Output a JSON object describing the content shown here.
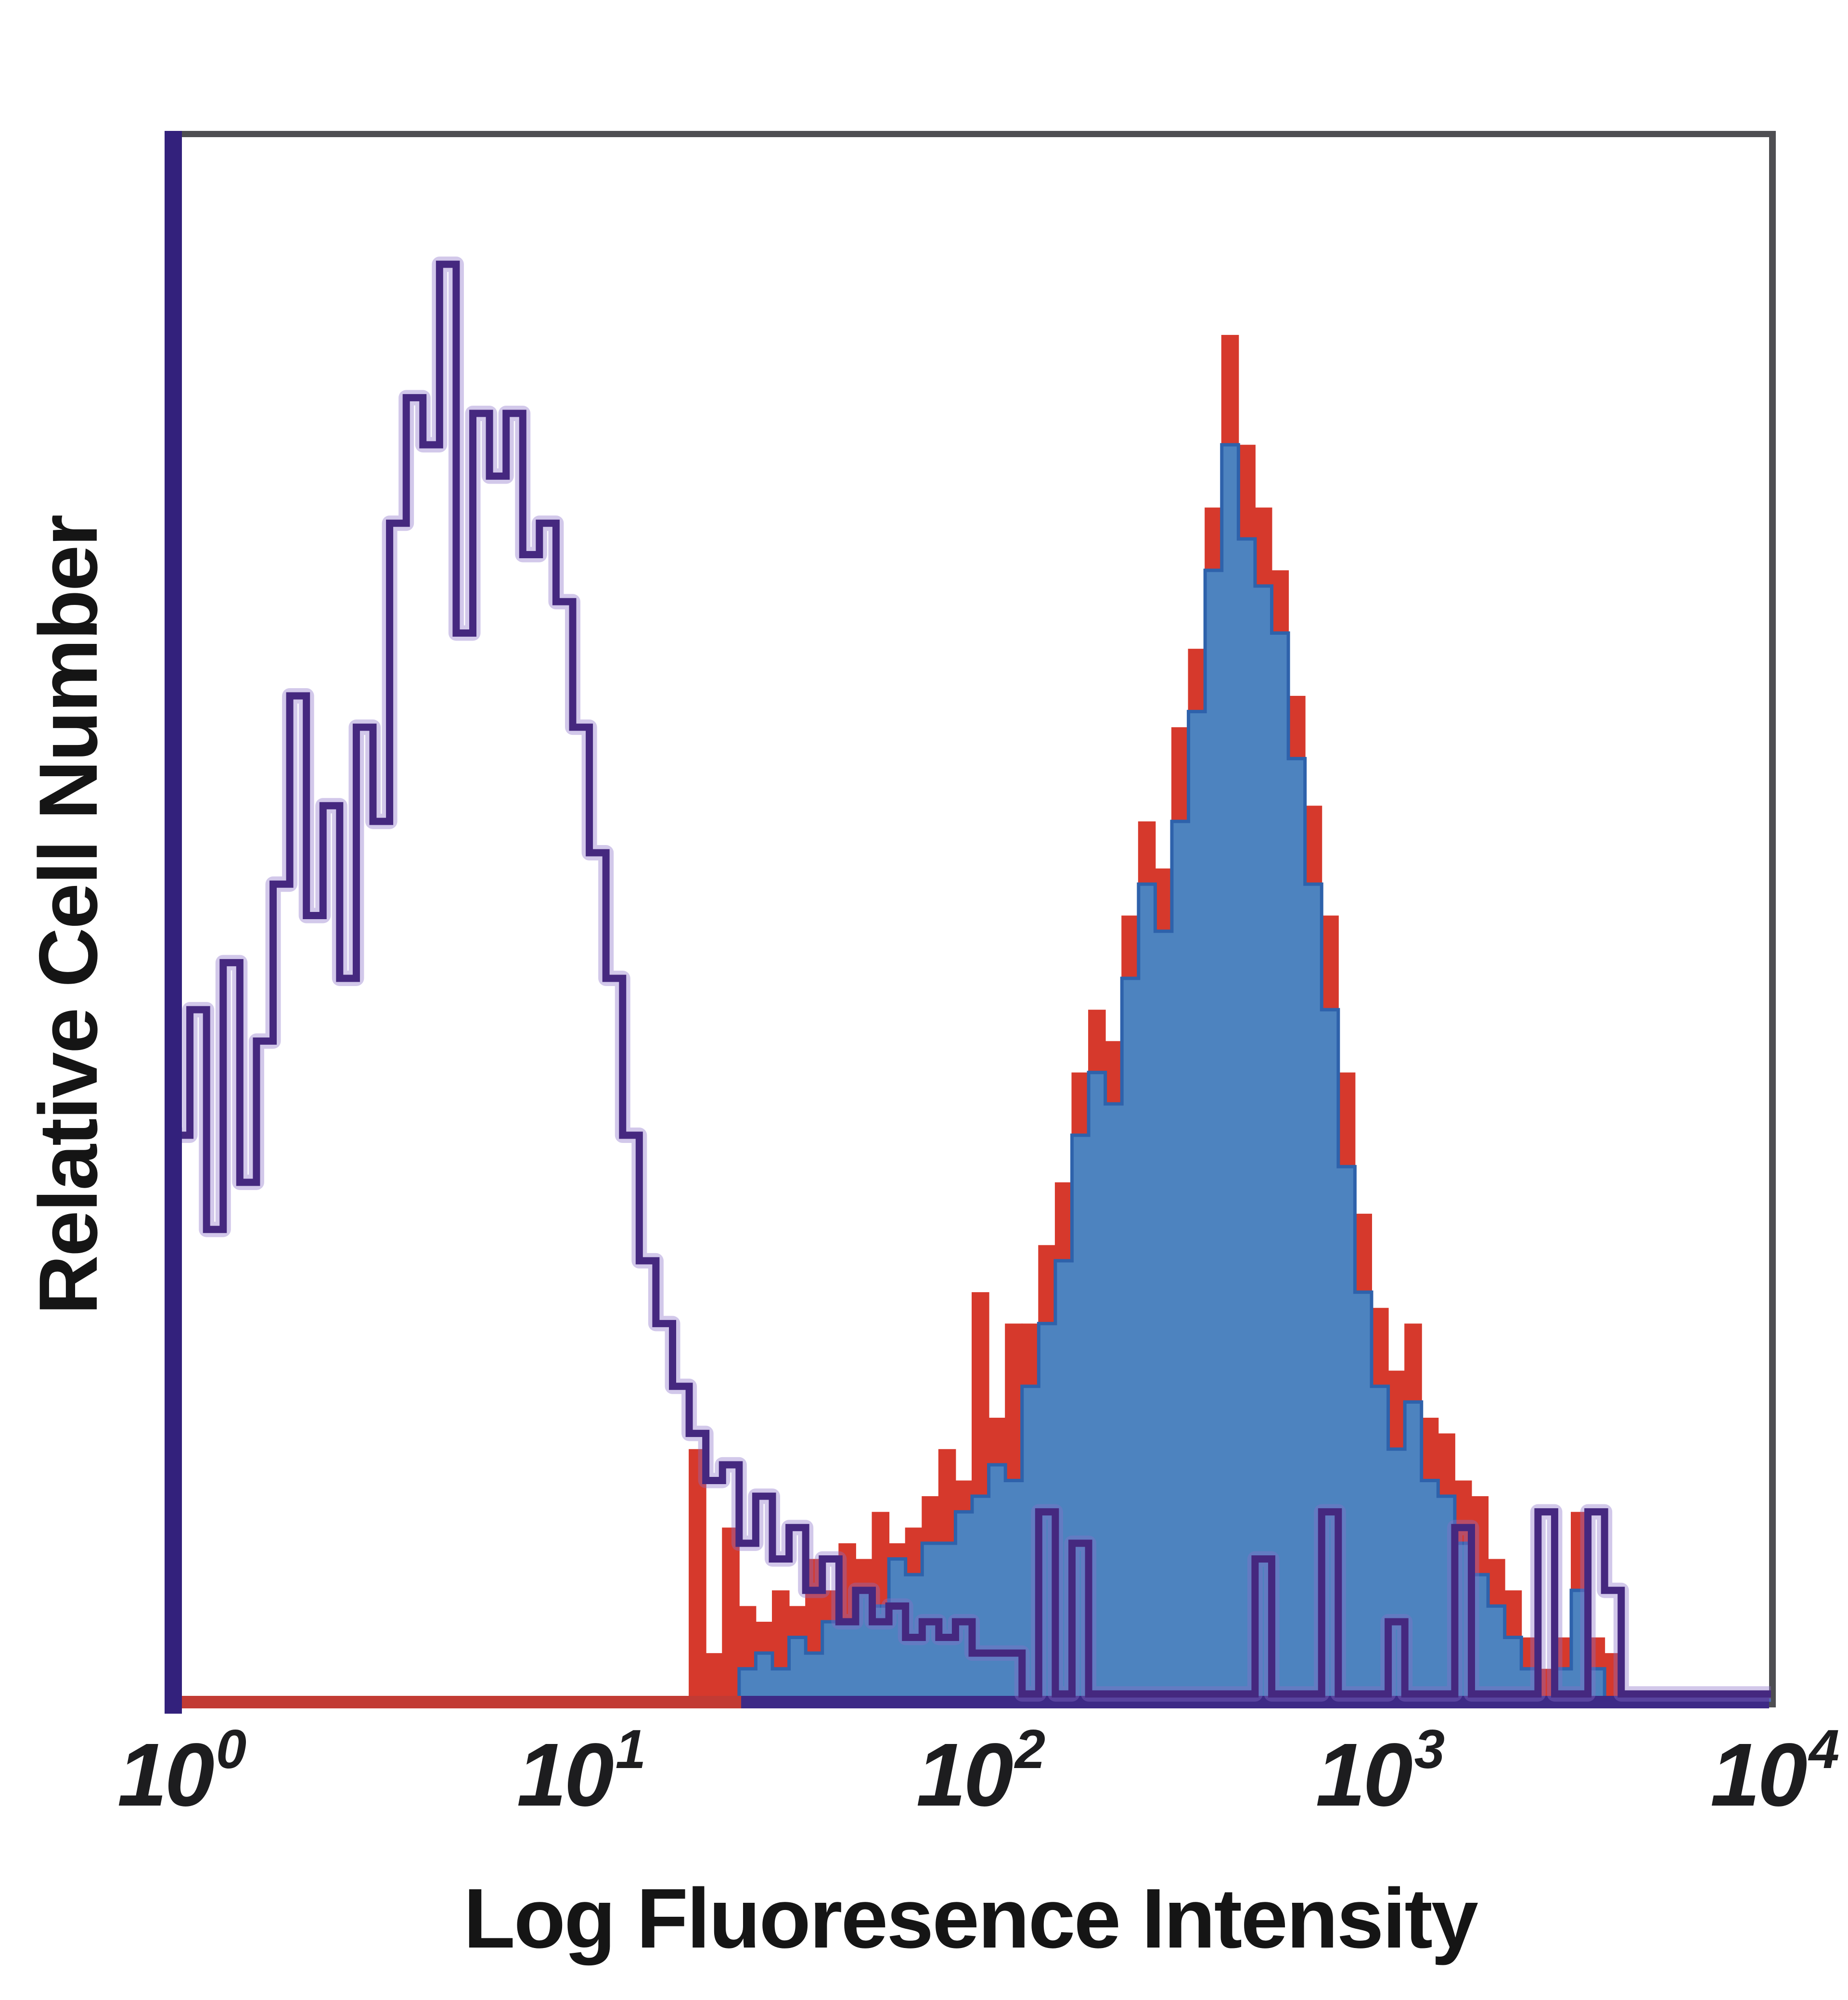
{
  "chart_data": {
    "type": "area",
    "subtype": "flow-cytometry-overlay-histogram",
    "title": "",
    "xlabel": "Log Fluoresence Intensity",
    "ylabel": "Relative Cell Number",
    "x_scale": "log10",
    "x_range": [
      1,
      10000
    ],
    "y_axis": "unlabeled relative scale, no ticks",
    "grid": "off",
    "legend": "none",
    "x_ticks": [
      {
        "base": "10",
        "exp": "0"
      },
      {
        "base": "10",
        "exp": "1"
      },
      {
        "base": "10",
        "exp": "2"
      },
      {
        "base": "10",
        "exp": "3"
      },
      {
        "base": "10",
        "exp": "4"
      }
    ],
    "bins_per_decade": 24,
    "frame_colors": {
      "left_axis": "#33217c",
      "top_right_frame": "#4e4e52",
      "baseline_left_red": "#c23b34",
      "baseline_right_purple": "#3d2a86"
    },
    "series": [
      {
        "name": "purple-open-histogram",
        "style": "outline",
        "color": "#45287f",
        "halo_color": "#8a6fc9",
        "peak_x_approx": 5,
        "values": [
          0.36,
          0.44,
          0.3,
          0.47,
          0.33,
          0.42,
          0.52,
          0.64,
          0.5,
          0.57,
          0.46,
          0.62,
          0.56,
          0.75,
          0.83,
          0.8,
          0.915,
          0.68,
          0.82,
          0.78,
          0.82,
          0.73,
          0.75,
          0.7,
          0.62,
          0.54,
          0.46,
          0.36,
          0.28,
          0.24,
          0.2,
          0.17,
          0.14,
          0.15,
          0.1,
          0.13,
          0.09,
          0.11,
          0.07,
          0.09,
          0.05,
          0.07,
          0.05,
          0.06,
          0.04,
          0.05,
          0.04,
          0.05,
          0.03,
          0.03,
          0.03,
          0.004,
          0.12,
          0.004,
          0.1,
          0.004,
          0.004,
          0.004,
          0.004,
          0.004,
          0.004,
          0.004,
          0.004,
          0.004,
          0.004,
          0.09,
          0.004,
          0.004,
          0.004,
          0.12,
          0.004,
          0.004,
          0.004,
          0.05,
          0.004,
          0.004,
          0.004,
          0.11,
          0.004,
          0.004,
          0.004,
          0.004,
          0.12,
          0.004,
          0.004,
          0.12,
          0.07,
          0.004,
          0.004,
          0.004,
          0.004,
          0.004,
          0.004,
          0.004,
          0.004,
          0.004
        ]
      },
      {
        "name": "red-outline-histogram",
        "style": "filled-tips",
        "color": "#d6392c",
        "peak_x_approx": 420,
        "values": [
          0,
          0,
          0,
          0,
          0,
          0,
          0,
          0,
          0,
          0,
          0,
          0,
          0,
          0,
          0,
          0,
          0,
          0,
          0,
          0,
          0,
          0,
          0,
          0,
          0,
          0,
          0,
          0,
          0,
          0,
          0,
          0.16,
          0.03,
          0.11,
          0.06,
          0.05,
          0.07,
          0.06,
          0.09,
          0.07,
          0.1,
          0.09,
          0.12,
          0.1,
          0.11,
          0.13,
          0.16,
          0.14,
          0.26,
          0.18,
          0.24,
          0.24,
          0.29,
          0.33,
          0.4,
          0.44,
          0.42,
          0.5,
          0.56,
          0.53,
          0.62,
          0.67,
          0.76,
          0.87,
          0.8,
          0.76,
          0.72,
          0.64,
          0.57,
          0.5,
          0.4,
          0.31,
          0.25,
          0.21,
          0.24,
          0.18,
          0.17,
          0.14,
          0.13,
          0.09,
          0.07,
          0.04,
          0.02,
          0.04,
          0.12,
          0.04,
          0.03,
          0,
          0,
          0,
          0,
          0,
          0,
          0,
          0,
          0
        ]
      },
      {
        "name": "blue-filled-histogram",
        "style": "filled",
        "color": "#4687c7",
        "edge_color": "#2e62ab",
        "peak_x_approx": 400,
        "values": [
          0,
          0,
          0,
          0,
          0,
          0,
          0,
          0,
          0,
          0,
          0,
          0,
          0,
          0,
          0,
          0,
          0,
          0,
          0,
          0,
          0,
          0,
          0,
          0,
          0,
          0,
          0,
          0,
          0,
          0,
          0,
          0,
          0,
          0,
          0.02,
          0.03,
          0.02,
          0.04,
          0.03,
          0.05,
          0.05,
          0.07,
          0.06,
          0.09,
          0.08,
          0.1,
          0.1,
          0.12,
          0.13,
          0.15,
          0.14,
          0.2,
          0.24,
          0.28,
          0.36,
          0.4,
          0.38,
          0.46,
          0.52,
          0.49,
          0.56,
          0.63,
          0.72,
          0.8,
          0.74,
          0.71,
          0.68,
          0.6,
          0.52,
          0.44,
          0.34,
          0.26,
          0.2,
          0.16,
          0.19,
          0.14,
          0.13,
          0.1,
          0.08,
          0.06,
          0.04,
          0.02,
          0,
          0.02,
          0.07,
          0.02,
          0,
          0,
          0,
          0,
          0,
          0,
          0,
          0,
          0,
          0
        ]
      }
    ]
  }
}
